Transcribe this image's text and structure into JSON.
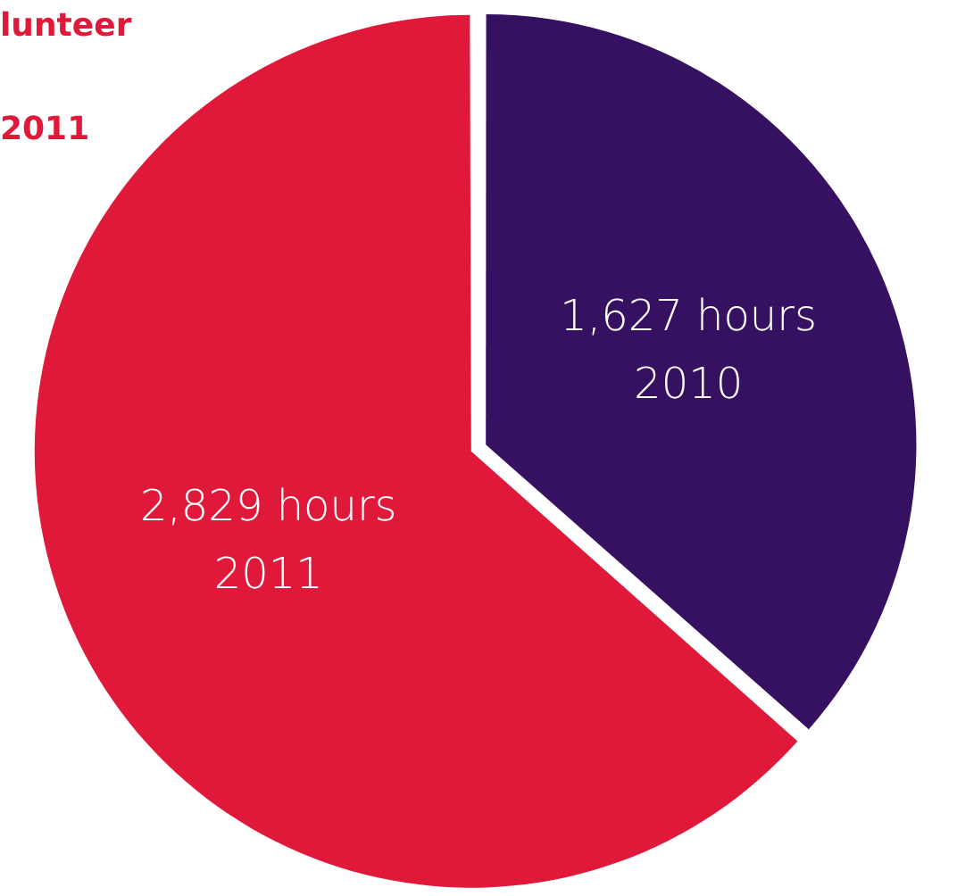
{
  "chart_data": {
    "type": "pie",
    "categories": [
      "2010",
      "2011"
    ],
    "values": [
      1627,
      2829
    ],
    "colors": [
      "#361061",
      "#e0193a"
    ],
    "value_labels": [
      "1,627 hours",
      "2,829 hours"
    ],
    "annotations": [
      "lunteer",
      "2011"
    ],
    "legend": false
  }
}
